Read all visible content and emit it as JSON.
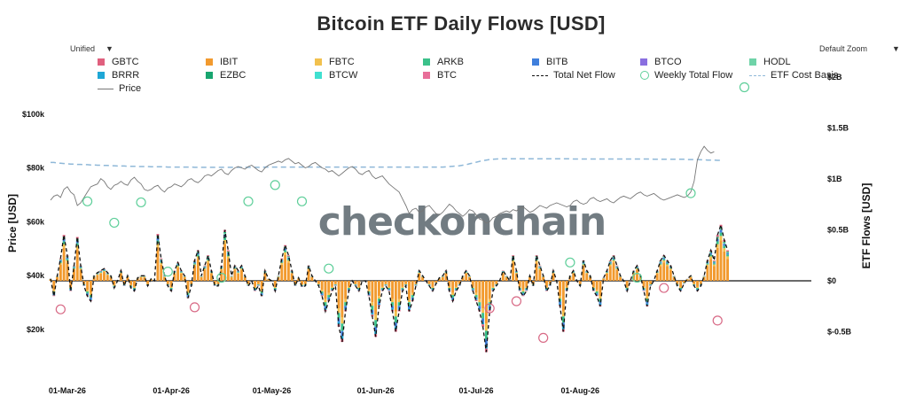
{
  "chart_data": {
    "type": "bar",
    "title": "Bitcoin ETF Daily Flows [USD]",
    "controls": {
      "left_dropdown": "Unified",
      "right_dropdown": "Default Zoom"
    },
    "watermark": "checkonchain",
    "left_axis": {
      "label": "Price [USD]",
      "ticks": [
        "$20k",
        "$40k",
        "$60k",
        "$80k",
        "$100k"
      ],
      "tick_values": [
        20000,
        40000,
        60000,
        80000,
        100000
      ]
    },
    "right_axis": {
      "label": "ETF Flows [USD]",
      "ticks": [
        "$-0.5B",
        "$0",
        "$0.5B",
        "$1B",
        "$1.5B",
        "$2B"
      ],
      "tick_values": [
        -0.5,
        0,
        0.5,
        1,
        1.5,
        2
      ]
    },
    "x_ticks": [
      "01-Mar-26",
      "01-Apr-26",
      "01-May-26",
      "01-Jun-26",
      "01-Jul-26",
      "01-Aug-26"
    ],
    "legend": [
      {
        "name": "GBTC",
        "color": "#e0607e",
        "kind": "bar"
      },
      {
        "name": "IBIT",
        "color": "#f29a2e",
        "kind": "bar"
      },
      {
        "name": "FBTC",
        "color": "#f2c14e",
        "kind": "bar"
      },
      {
        "name": "ARKB",
        "color": "#3bc18a",
        "kind": "bar"
      },
      {
        "name": "BITB",
        "color": "#3f7fdc",
        "kind": "bar"
      },
      {
        "name": "BTCO",
        "color": "#8a6fe0",
        "kind": "bar"
      },
      {
        "name": "HODL",
        "color": "#6fd3a8",
        "kind": "bar"
      },
      {
        "name": "BRRR",
        "color": "#1ea7d6",
        "kind": "bar"
      },
      {
        "name": "EZBC",
        "color": "#18a56f",
        "kind": "bar"
      },
      {
        "name": "BTCW",
        "color": "#40e0d0",
        "kind": "bar"
      },
      {
        "name": "BTC",
        "color": "#e86f99",
        "kind": "bar"
      },
      {
        "name": "Total Net Flow",
        "color": "#111111",
        "kind": "dashed"
      },
      {
        "name": "Weekly Total Flow",
        "color": "#5fcf9a",
        "kind": "circle"
      },
      {
        "name": "ETF Cost Basis",
        "color": "#8fb8d8",
        "kind": "dashed"
      },
      {
        "name": "Price",
        "color": "#777777",
        "kind": "line"
      }
    ],
    "start_date": "2026-02-24",
    "net_flow_B": [
      0.02,
      -0.15,
      0.05,
      0.22,
      0.45,
      0.25,
      -0.1,
      0.15,
      0.43,
      0.15,
      -0.05,
      -0.15,
      -0.2,
      0.05,
      0.08,
      0.1,
      0.12,
      0.08,
      0.05,
      -0.07,
      0.0,
      0.1,
      -0.05,
      0.05,
      -0.07,
      -0.1,
      0.03,
      0.05,
      0.05,
      -0.05,
      0.02,
      0.0,
      0.46,
      0.22,
      0.05,
      -0.05,
      -0.1,
      0.1,
      0.18,
      0.1,
      0.05,
      -0.17,
      -0.05,
      0.2,
      0.3,
      0.05,
      0.15,
      0.25,
      0.1,
      -0.05,
      -0.05,
      0.15,
      0.5,
      0.3,
      0.05,
      0.15,
      0.1,
      0.15,
      0.05,
      -0.05,
      0.0,
      -0.1,
      -0.05,
      -0.15,
      0.1,
      0.02,
      0.0,
      -0.1,
      0.05,
      0.22,
      0.35,
      0.25,
      0.1,
      -0.05,
      0.03,
      -0.06,
      -0.05,
      0.15,
      0.05,
      0.0,
      -0.05,
      -0.15,
      -0.3,
      -0.2,
      -0.1,
      -0.05,
      -0.45,
      -0.6,
      -0.3,
      -0.1,
      0.0,
      -0.05,
      -0.1,
      0.0,
      0.0,
      -0.15,
      -0.35,
      -0.55,
      -0.25,
      -0.1,
      -0.05,
      -0.1,
      -0.3,
      -0.5,
      -0.3,
      -0.1,
      -0.05,
      -0.3,
      -0.2,
      -0.05,
      0.1,
      0.05,
      0.0,
      -0.05,
      -0.1,
      -0.03,
      0.03,
      0.05,
      0.1,
      -0.1,
      -0.2,
      -0.1,
      -0.05,
      0.05,
      0.1,
      0.05,
      -0.1,
      -0.2,
      -0.3,
      -0.45,
      -0.7,
      -0.3,
      -0.1,
      -0.05,
      0.0,
      0.1,
      0.05,
      0.0,
      0.25,
      0.1,
      -0.1,
      -0.15,
      -0.1,
      0.05,
      -0.05,
      0.25,
      0.15,
      0.05,
      -0.1,
      -0.05,
      0.1,
      0.0,
      -0.25,
      -0.5,
      -0.1,
      0.05,
      0.1,
      0.0,
      -0.05,
      0.2,
      0.1,
      0.05,
      -0.1,
      -0.15,
      -0.25,
      0.03,
      0.1,
      0.2,
      0.25,
      0.15,
      0.05,
      0.0,
      -0.1,
      0.0,
      0.1,
      0.15,
      0.05,
      -0.1,
      -0.25,
      -0.05,
      0.0,
      0.1,
      0.2,
      0.25,
      0.2,
      0.15,
      0.05,
      -0.05,
      -0.1,
      -0.03,
      0.02,
      0.05,
      -0.05,
      -0.1,
      -0.05,
      0.05,
      0.2,
      0.3,
      0.2,
      0.45,
      0.55,
      0.4,
      0.3
    ],
    "cost_basis": [
      82000,
      82000,
      81800,
      81700,
      81600,
      81500,
      81400,
      81400,
      81300,
      81300,
      81200,
      81200,
      81100,
      81100,
      81000,
      81000,
      80900,
      80900,
      80800,
      80800,
      80700,
      80700,
      80700,
      80600,
      80600,
      80600,
      80500,
      80500,
      80500,
      80500,
      80400,
      80400,
      80400,
      80400,
      80400,
      80300,
      80300,
      80300,
      80300,
      80300,
      80300,
      80300,
      80300,
      80200,
      80200,
      80200,
      80200,
      80200,
      80200,
      80200,
      80200,
      80200,
      80200,
      80200,
      80200,
      80200,
      80200,
      80200,
      80200,
      80200,
      80200,
      80200,
      80200,
      80200,
      80300,
      80300,
      80300,
      80300,
      80300,
      80300,
      80300,
      80300,
      80300,
      80300,
      80300,
      80300,
      80300,
      80300,
      80300,
      80300,
      80300,
      80300,
      80300,
      80300,
      80300,
      80300,
      80300,
      80300,
      80300,
      80300,
      80300,
      80300,
      80300,
      80300,
      80300,
      80300,
      80300,
      80300,
      80300,
      80300,
      80300,
      80300,
      80300,
      80300,
      80300,
      80300,
      80300,
      80300,
      80300,
      80300,
      80300,
      80300,
      80300,
      80300,
      80300,
      80300,
      80300,
      80300,
      80400,
      80500,
      80600,
      80700,
      80800,
      81000,
      81200,
      81500,
      81800,
      82100,
      82400,
      82700,
      82900,
      83100,
      83200,
      83300,
      83400,
      83400,
      83400,
      83400,
      83400,
      83400,
      83400,
      83400,
      83400,
      83400,
      83400,
      83400,
      83400,
      83400,
      83400,
      83400,
      83400,
      83400,
      83400,
      83400,
      83400,
      83400,
      83300,
      83300,
      83300,
      83300,
      83300,
      83300,
      83300,
      83300,
      83300,
      83300,
      83300,
      83300,
      83300,
      83300,
      83300,
      83300,
      83300,
      83300,
      83300,
      83300,
      83300,
      83300,
      83300,
      83300,
      83200,
      83200,
      83200,
      83200,
      83200,
      83200,
      83200,
      83200,
      83200,
      83200,
      83100,
      83100,
      83100,
      83100,
      83000,
      83000,
      82900,
      82900,
      82900,
      82800,
      82800
    ],
    "price": [
      68000,
      69500,
      70000,
      69000,
      72000,
      73000,
      71000,
      70000,
      66000,
      67000,
      69000,
      71000,
      73000,
      73500,
      74000,
      76000,
      75000,
      73000,
      72000,
      73500,
      74000,
      75000,
      74000,
      73500,
      75500,
      76500,
      75000,
      74000,
      72000,
      71500,
      72000,
      73000,
      73500,
      72000,
      71000,
      72500,
      73000,
      74000,
      73500,
      73000,
      74000,
      75500,
      76000,
      75000,
      74500,
      75500,
      77000,
      77500,
      77000,
      78000,
      79000,
      79500,
      78000,
      77500,
      79000,
      80000,
      80500,
      80000,
      79500,
      80500,
      81000,
      80000,
      79000,
      78500,
      80000,
      81000,
      81500,
      82000,
      82500,
      82000,
      83000,
      83500,
      82500,
      81500,
      82000,
      81000,
      80000,
      80500,
      81500,
      82000,
      81000,
      80000,
      79500,
      78500,
      79000,
      78000,
      77000,
      78000,
      79000,
      80000,
      80500,
      79500,
      78000,
      77500,
      78500,
      79000,
      77000,
      76000,
      76500,
      77000,
      75500,
      74000,
      73000,
      72000,
      71000,
      68500,
      66000,
      63000,
      64500,
      65000,
      63500,
      64000,
      65500,
      66000,
      64500,
      63000,
      62500,
      63500,
      65000,
      66500,
      65500,
      64000,
      63000,
      62000,
      63000,
      64500,
      64000,
      62500,
      61000,
      60500,
      59500,
      60000,
      61500,
      62000,
      63000,
      63500,
      64000,
      63500,
      64500,
      64000,
      65000,
      65500,
      64500,
      63500,
      64000,
      65000,
      66000,
      65500,
      65000,
      66000,
      66500,
      67000,
      66500,
      66000,
      65500,
      66000,
      67500,
      68000,
      67000,
      66500,
      67000,
      68500,
      69000,
      68000,
      67500,
      68000,
      68500,
      67500,
      67000,
      68000,
      69000,
      69500,
      69000,
      68500,
      69500,
      70500,
      71000,
      70000,
      69500,
      70000,
      70500,
      69500,
      68500,
      68000,
      68500,
      69000,
      69500,
      70000,
      69500,
      69000,
      69500,
      71000,
      75000,
      83000,
      86000,
      88000,
      86500,
      85500,
      86000
    ],
    "weekly": [
      {
        "day": 3,
        "B": -0.28
      },
      {
        "day": 11,
        "B": 0.78
      },
      {
        "day": 19,
        "B": 0.57
      },
      {
        "day": 27,
        "B": 0.77
      },
      {
        "day": 35,
        "B": 0.09
      },
      {
        "day": 43,
        "B": -0.26
      },
      {
        "day": 51,
        "B": 0.03
      },
      {
        "day": 59,
        "B": 0.78
      },
      {
        "day": 67,
        "B": 0.94
      },
      {
        "day": 75,
        "B": 0.78
      },
      {
        "day": 83,
        "B": 0.12
      },
      {
        "day": 131,
        "B": -0.27
      },
      {
        "day": 139,
        "B": -0.2
      },
      {
        "day": 147,
        "B": -0.56
      },
      {
        "day": 155,
        "B": 0.18
      },
      {
        "day": 175,
        "B": 0.03
      },
      {
        "day": 183,
        "B": -0.07
      },
      {
        "day": 191,
        "B": 0.86
      },
      {
        "day": 199,
        "B": -0.39
      },
      {
        "day": 207,
        "B": 1.9
      }
    ]
  }
}
